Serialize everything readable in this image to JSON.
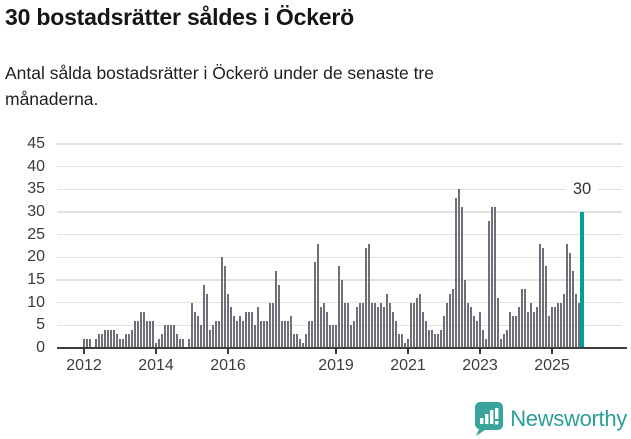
{
  "header": {
    "title": "30 bostadsrätter såldes i Öckerö",
    "subtitle": "Antal sålda bostadsrätter i Öckerö under de senaste tre månaderna."
  },
  "chart_data": {
    "type": "bar",
    "title": "30 bostadsrätter såldes i Öckerö",
    "subtitle": "Antal sålda bostadsrätter i Öckerö under de senaste tre månaderna.",
    "xlabel": "",
    "ylabel": "",
    "ylim": [
      0,
      45
    ],
    "grid": true,
    "yticks": [
      0,
      5,
      10,
      15,
      20,
      25,
      30,
      35,
      40,
      45
    ],
    "x_start_month": "2012-01",
    "x_end_month": "2025-11",
    "year_ticks": [
      "2012",
      "2014",
      "2016",
      "2019",
      "2021",
      "2023",
      "2025"
    ],
    "bar_color": "#6f6f78",
    "highlight_color": "#00a099",
    "values": [
      2,
      2,
      2,
      0,
      2,
      3,
      3,
      4,
      4,
      4,
      4,
      3,
      2,
      2,
      3,
      3,
      4,
      6,
      6,
      8,
      8,
      6,
      6,
      6,
      1,
      2,
      3,
      5,
      5,
      5,
      5,
      3,
      2,
      2,
      0,
      2,
      10,
      8,
      7,
      5,
      14,
      12,
      4,
      5,
      6,
      6,
      20,
      18,
      12,
      9,
      7,
      6,
      7,
      6,
      8,
      8,
      8,
      5,
      9,
      6,
      6,
      6,
      10,
      10,
      17,
      14,
      6,
      6,
      6,
      7,
      3,
      3,
      2,
      1,
      3,
      6,
      6,
      19,
      23,
      9,
      10,
      8,
      5,
      5,
      5,
      18,
      15,
      10,
      10,
      5,
      6,
      9,
      10,
      10,
      22,
      23,
      10,
      10,
      9,
      10,
      9,
      12,
      10,
      8,
      6,
      3,
      3,
      1,
      2,
      10,
      10,
      11,
      12,
      8,
      6,
      4,
      4,
      3,
      3,
      4,
      7,
      10,
      12,
      13,
      33,
      35,
      31,
      15,
      10,
      9,
      7,
      6,
      8,
      4,
      2,
      28,
      31,
      31,
      11,
      2,
      3,
      4,
      8,
      7,
      7,
      9,
      13,
      13,
      8,
      10,
      8,
      9,
      23,
      22,
      18,
      7,
      9,
      9,
      10,
      10,
      12,
      23,
      21,
      17,
      12,
      10,
      30
    ],
    "highlight_last": {
      "value": 30,
      "label": "30"
    }
  },
  "annotation": {
    "last_value_label": "30"
  },
  "footer": {
    "brand": "Newsworthy",
    "logo_color": "#3aa39b"
  }
}
